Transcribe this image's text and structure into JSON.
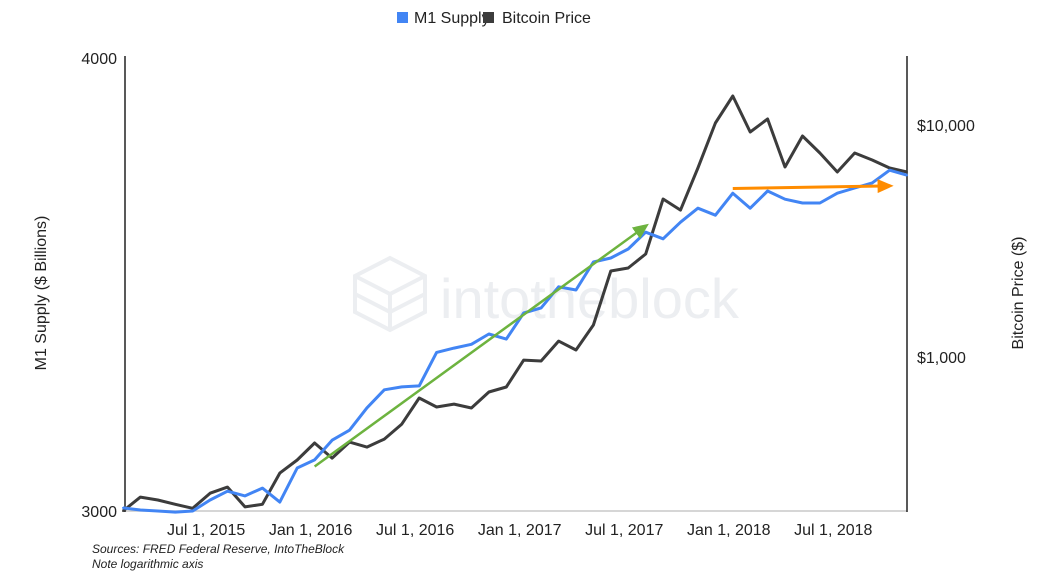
{
  "chart_data": {
    "type": "line",
    "title": "",
    "x_dates": [
      "2015-02",
      "2015-03",
      "2015-04",
      "2015-05",
      "2015-06",
      "2015-07",
      "2015-08",
      "2015-09",
      "2015-10",
      "2015-11",
      "2015-12",
      "2016-01",
      "2016-02",
      "2016-03",
      "2016-04",
      "2016-05",
      "2016-06",
      "2016-07",
      "2016-08",
      "2016-09",
      "2016-10",
      "2016-11",
      "2016-12",
      "2017-01",
      "2017-02",
      "2017-03",
      "2017-04",
      "2017-05",
      "2017-06",
      "2017-07",
      "2017-08",
      "2017-09",
      "2017-10",
      "2017-11",
      "2017-12",
      "2018-01",
      "2018-02",
      "2018-03",
      "2018-04",
      "2018-05",
      "2018-06",
      "2018-07",
      "2018-08",
      "2018-09",
      "2018-10",
      "2018-11"
    ],
    "x_ticks": [
      {
        "label": "Jul 1, 2015",
        "date": "2015-07"
      },
      {
        "label": "Jan 1, 2016",
        "date": "2016-01"
      },
      {
        "label": "Jul 1, 2016",
        "date": "2016-07"
      },
      {
        "label": "Jan 1, 2017",
        "date": "2017-01"
      },
      {
        "label": "Jul 1, 2017",
        "date": "2017-07"
      },
      {
        "label": "Jan 1, 2018",
        "date": "2018-01"
      },
      {
        "label": "Jul 1, 2018",
        "date": "2018-07"
      }
    ],
    "series": [
      {
        "name": "M1 Supply",
        "axis": "left",
        "color": "#4285f4",
        "values": [
          3006,
          3002,
          3000,
          2998,
          3000,
          3021,
          3038,
          3029,
          3044,
          3017,
          3083,
          3099,
          3138,
          3158,
          3203,
          3240,
          3246,
          3248,
          3318,
          3327,
          3335,
          3357,
          3346,
          3402,
          3413,
          3459,
          3452,
          3514,
          3523,
          3543,
          3581,
          3566,
          3604,
          3636,
          3620,
          3671,
          3636,
          3676,
          3657,
          3648,
          3648,
          3671,
          3683,
          3695,
          3725,
          3713
        ]
      },
      {
        "name": "Bitcoin Price",
        "axis": "right",
        "color": "#3c3c3c",
        "values": [
          217,
          249,
          242,
          232,
          223,
          259,
          275,
          226,
          232,
          316,
          360,
          426,
          367,
          430,
          409,
          443,
          514,
          666,
          609,
          627,
          603,
          707,
          743,
          970,
          962,
          1172,
          1072,
          1374,
          2348,
          2419,
          2780,
          4798,
          4301,
          6527,
          10200,
          13335,
          9329,
          10614,
          6592,
          8968,
          7574,
          6272,
          7574,
          7067,
          6527,
          6272
        ]
      }
    ],
    "left_axis": {
      "label": "M1 Supply ($ Billions)",
      "scale": "log",
      "range": [
        3000,
        4000
      ],
      "ticks": [
        {
          "value": 4000,
          "label": "4000"
        },
        {
          "value": 3000,
          "label": "3000"
        }
      ]
    },
    "right_axis": {
      "label": "Bitcoin Price ($)",
      "scale": "log",
      "range": [
        217,
        19450
      ],
      "ticks": [
        {
          "value": 10000,
          "label": "$10,000"
        },
        {
          "value": 1000,
          "label": "$1,000"
        }
      ]
    },
    "grid": false,
    "legend": {
      "placement": "top",
      "entries": [
        {
          "label": "M1 Supply",
          "color": "#4285f4"
        },
        {
          "label": "Bitcoin Price",
          "color": "#3c3c3c"
        }
      ]
    },
    "annotations": [
      {
        "type": "arrow",
        "color": "#6db33f",
        "axis": "left",
        "from": {
          "date": "2016-01",
          "value": 3086
        },
        "to": {
          "date": "2017-08",
          "value": 3595
        }
      },
      {
        "type": "arrow",
        "color": "#ff8c00",
        "axis": "left",
        "from": {
          "date": "2018-01",
          "value": 3682
        },
        "to": {
          "date": "2018-10",
          "value": 3688
        }
      }
    ]
  },
  "footnote": {
    "line1": "Sources: FRED Federal Reserve, IntoTheBlock",
    "line2": "Note logarithmic axis"
  },
  "watermark": {
    "text": "intotheblock",
    "icon": "cube-logo-icon"
  }
}
